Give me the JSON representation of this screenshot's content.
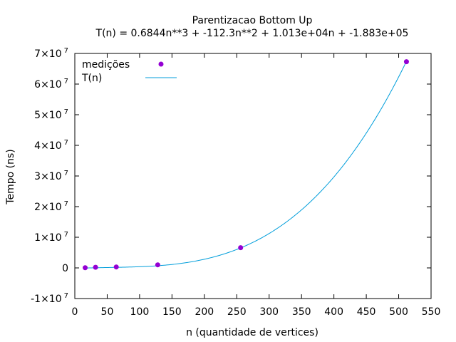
{
  "chart_data": {
    "type": "scatter",
    "title": "Parentizacao Bottom Up",
    "subtitle": "T(n) = 0.6844n**3 + -112.3n**2 + 1.013e+04n + -1.883e+05",
    "xlabel": "n (quantidade de vertices)",
    "ylabel": "Tempo (ns)",
    "xlim": [
      0,
      550
    ],
    "ylim": [
      -10000000,
      70000000
    ],
    "x_ticks": [
      0,
      50,
      100,
      150,
      200,
      250,
      300,
      350,
      400,
      450,
      500,
      550
    ],
    "y_ticks": [
      -10000000,
      0,
      10000000,
      20000000,
      30000000,
      40000000,
      50000000,
      60000000,
      70000000
    ],
    "y_tick_labels": [
      {
        "mantissa": "-1×10",
        "exp": "7"
      },
      {
        "mantissa": "0",
        "exp": ""
      },
      {
        "mantissa": "1×10",
        "exp": "7"
      },
      {
        "mantissa": "2×10",
        "exp": "7"
      },
      {
        "mantissa": "3×10",
        "exp": "7"
      },
      {
        "mantissa": "4×10",
        "exp": "7"
      },
      {
        "mantissa": "5×10",
        "exp": "7"
      },
      {
        "mantissa": "6×10",
        "exp": "7"
      },
      {
        "mantissa": "7×10",
        "exp": "7"
      }
    ],
    "legend_position": "top-left",
    "series": [
      {
        "name": "medições",
        "kind": "points",
        "color": "#9400d3",
        "x": [
          16,
          32,
          64,
          128,
          256,
          512
        ],
        "y": [
          50000,
          200000,
          300000,
          1000000,
          6600000,
          67300000
        ]
      },
      {
        "name": "T(n)",
        "kind": "fit-curve",
        "color": "#009edb",
        "coefficients": [
          0.6844,
          -112.3,
          10130,
          -188300
        ]
      }
    ]
  }
}
